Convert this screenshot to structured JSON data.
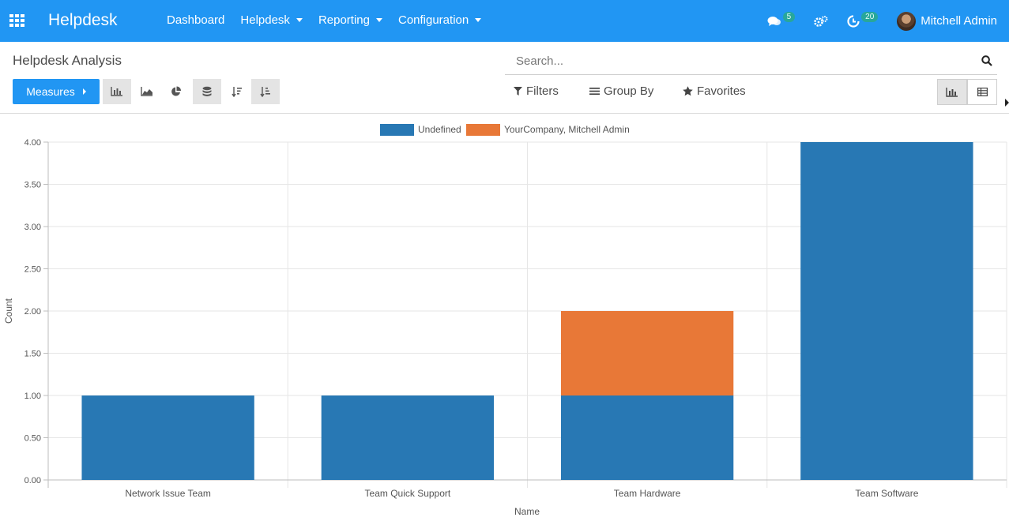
{
  "navbar": {
    "app_title": "Helpdesk",
    "menu": [
      "Dashboard",
      "Helpdesk",
      "Reporting",
      "Configuration"
    ],
    "menu_has_caret": [
      false,
      true,
      true,
      true
    ],
    "messages_count": "5",
    "activities_count": "20",
    "user_name": "Mitchell Admin",
    "accent_color": "#2196f3"
  },
  "control_panel": {
    "breadcrumb": "Helpdesk Analysis",
    "search_placeholder": "Search...",
    "measures_label": "Measures",
    "filters_label": "Filters",
    "group_by_label": "Group By",
    "favorites_label": "Favorites",
    "tools": [
      "bar-chart-icon",
      "area-chart-icon",
      "pie-chart-icon",
      "stacked-icon",
      "sort-descending-icon",
      "sort-ascending-icon"
    ],
    "active_view": "graph"
  },
  "chart_data": {
    "type": "bar",
    "stacked": true,
    "categories": [
      "Network Issue Team",
      "Team Quick Support",
      "Team Hardware",
      "Team Software"
    ],
    "series": [
      {
        "name": "Undefined",
        "color": "#2878b4",
        "values": [
          1,
          1,
          1,
          4
        ]
      },
      {
        "name": "YourCompany, Mitchell Admin",
        "color": "#e87837",
        "values": [
          0,
          0,
          1,
          0
        ]
      }
    ],
    "xlabel": "Name",
    "ylabel": "Count",
    "ylim": [
      0,
      4
    ],
    "yticks": [
      "0.00",
      "0.50",
      "1.00",
      "1.50",
      "2.00",
      "2.50",
      "3.00",
      "3.50",
      "4.00"
    ],
    "grid": true,
    "legend_position": "top"
  }
}
